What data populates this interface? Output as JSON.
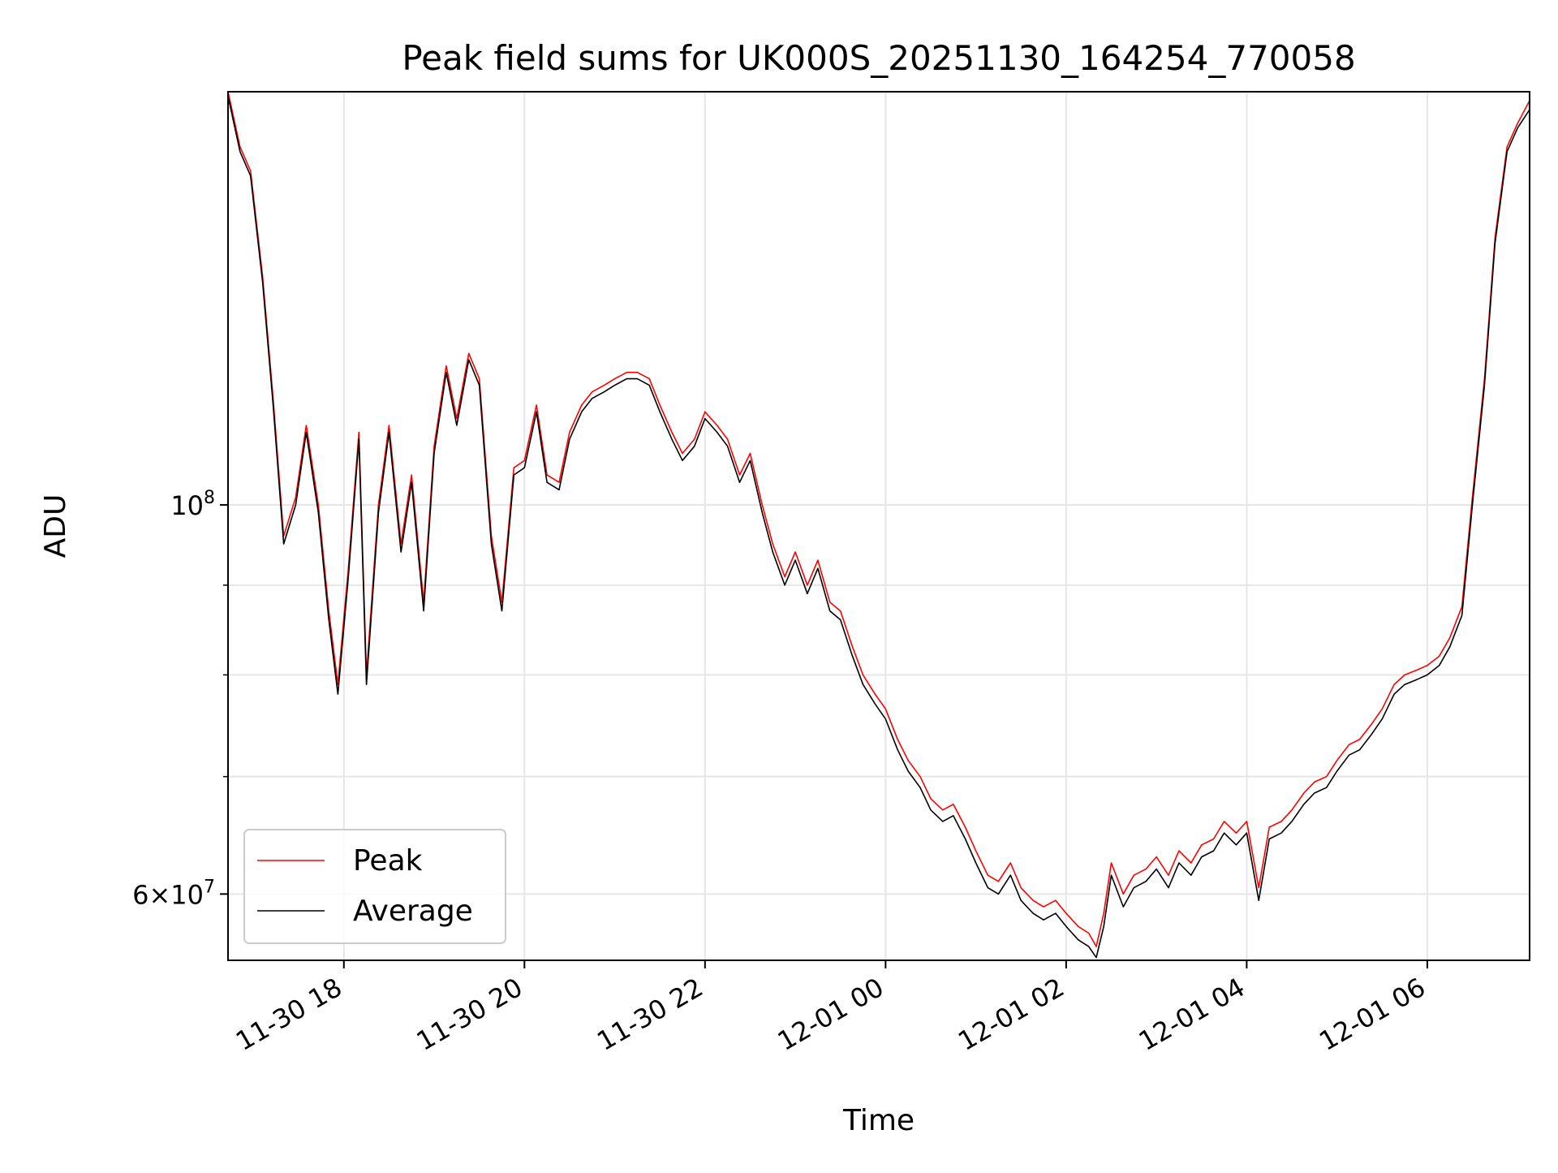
{
  "chart_data": {
    "type": "line",
    "title": "Peak field sums for UK000S_20251130_164254_770058",
    "xlabel": "Time",
    "ylabel": "ADU",
    "y_scale": "log",
    "ylim": [
      55000000,
      172000000
    ],
    "xlim": [
      "2025-11-30 16:43",
      "2025-12-01 07:08"
    ],
    "x_ticks": [
      {
        "time": "2025-11-30 18:00",
        "label": "11-30 18"
      },
      {
        "time": "2025-11-30 20:00",
        "label": "11-30 20"
      },
      {
        "time": "2025-11-30 22:00",
        "label": "11-30 22"
      },
      {
        "time": "2025-12-01 00:00",
        "label": "12-01 00"
      },
      {
        "time": "2025-12-01 02:00",
        "label": "12-01 02"
      },
      {
        "time": "2025-12-01 04:00",
        "label": "12-01 04"
      },
      {
        "time": "2025-12-01 06:00",
        "label": "12-01 06"
      }
    ],
    "y_major_ticks": [
      {
        "value": 100000000,
        "base": "10",
        "exp": "8"
      },
      {
        "value": 60000000,
        "base": "6×10",
        "exp": "7"
      }
    ],
    "y_minor_gridlines": [
      70000000,
      80000000,
      90000000
    ],
    "grid": true,
    "legend_position": "lower-left",
    "series": [
      {
        "name": "Peak",
        "color": "#ff0000",
        "points": [
          [
            "2025-11-30 16:43",
            172000000
          ],
          [
            "2025-11-30 16:51",
            160000000
          ],
          [
            "2025-11-30 16:58",
            155000000
          ],
          [
            "2025-11-30 17:06",
            135000000
          ],
          [
            "2025-11-30 17:13",
            115000000
          ],
          [
            "2025-11-30 17:20",
            96000000
          ],
          [
            "2025-11-30 17:28",
            101000000
          ],
          [
            "2025-11-30 17:35",
            111000000
          ],
          [
            "2025-11-30 17:43",
            100000000
          ],
          [
            "2025-11-30 17:50",
            87000000
          ],
          [
            "2025-11-30 17:56",
            79000000
          ],
          [
            "2025-11-30 18:03",
            92000000
          ],
          [
            "2025-11-30 18:10",
            110000000
          ],
          [
            "2025-11-30 18:15",
            80000000
          ],
          [
            "2025-11-30 18:23",
            100000000
          ],
          [
            "2025-11-30 18:30",
            111000000
          ],
          [
            "2025-11-30 18:38",
            95000000
          ],
          [
            "2025-11-30 18:45",
            104000000
          ],
          [
            "2025-11-30 18:53",
            88000000
          ],
          [
            "2025-11-30 19:00",
            108000000
          ],
          [
            "2025-11-30 19:08",
            120000000
          ],
          [
            "2025-11-30 19:15",
            112000000
          ],
          [
            "2025-11-30 19:23",
            122000000
          ],
          [
            "2025-11-30 19:30",
            118000000
          ],
          [
            "2025-11-30 19:38",
            96000000
          ],
          [
            "2025-11-30 19:45",
            88000000
          ],
          [
            "2025-11-30 19:53",
            105000000
          ],
          [
            "2025-11-30 20:00",
            106000000
          ],
          [
            "2025-11-30 20:08",
            114000000
          ],
          [
            "2025-11-30 20:15",
            104000000
          ],
          [
            "2025-11-30 20:23",
            103000000
          ],
          [
            "2025-11-30 20:30",
            110000000
          ],
          [
            "2025-11-30 20:38",
            114000000
          ],
          [
            "2025-11-30 20:45",
            116000000
          ],
          [
            "2025-11-30 20:53",
            117000000
          ],
          [
            "2025-11-30 21:00",
            118000000
          ],
          [
            "2025-11-30 21:08",
            119000000
          ],
          [
            "2025-11-30 21:15",
            119000000
          ],
          [
            "2025-11-30 21:23",
            118000000
          ],
          [
            "2025-11-30 21:30",
            114000000
          ],
          [
            "2025-11-30 21:38",
            110000000
          ],
          [
            "2025-11-30 21:45",
            107000000
          ],
          [
            "2025-11-30 21:53",
            109000000
          ],
          [
            "2025-11-30 22:00",
            113000000
          ],
          [
            "2025-11-30 22:08",
            111000000
          ],
          [
            "2025-11-30 22:15",
            109000000
          ],
          [
            "2025-11-30 22:23",
            104000000
          ],
          [
            "2025-11-30 22:30",
            107000000
          ],
          [
            "2025-11-30 22:38",
            100000000
          ],
          [
            "2025-11-30 22:45",
            95000000
          ],
          [
            "2025-11-30 22:53",
            91000000
          ],
          [
            "2025-11-30 23:00",
            94000000
          ],
          [
            "2025-11-30 23:08",
            90000000
          ],
          [
            "2025-11-30 23:15",
            93000000
          ],
          [
            "2025-11-30 23:23",
            88000000
          ],
          [
            "2025-11-30 23:30",
            87000000
          ],
          [
            "2025-11-30 23:38",
            83000000
          ],
          [
            "2025-11-30 23:45",
            80000000
          ],
          [
            "2025-11-30 23:53",
            78000000
          ],
          [
            "2025-12-01 00:00",
            76500000
          ],
          [
            "2025-12-01 00:08",
            73500000
          ],
          [
            "2025-12-01 00:15",
            71500000
          ],
          [
            "2025-12-01 00:23",
            70000000
          ],
          [
            "2025-12-01 00:30",
            68000000
          ],
          [
            "2025-12-01 00:38",
            67000000
          ],
          [
            "2025-12-01 00:45",
            67500000
          ],
          [
            "2025-12-01 00:53",
            65500000
          ],
          [
            "2025-12-01 01:00",
            63500000
          ],
          [
            "2025-12-01 01:08",
            61500000
          ],
          [
            "2025-12-01 01:15",
            61000000
          ],
          [
            "2025-12-01 01:23",
            62500000
          ],
          [
            "2025-12-01 01:30",
            60500000
          ],
          [
            "2025-12-01 01:38",
            59500000
          ],
          [
            "2025-12-01 01:45",
            59000000
          ],
          [
            "2025-12-01 01:53",
            59500000
          ],
          [
            "2025-12-01 02:00",
            58500000
          ],
          [
            "2025-12-01 02:08",
            57500000
          ],
          [
            "2025-12-01 02:15",
            57000000
          ],
          [
            "2025-12-01 02:20",
            56000000
          ],
          [
            "2025-12-01 02:25",
            58500000
          ],
          [
            "2025-12-01 02:30",
            62500000
          ],
          [
            "2025-12-01 02:38",
            60000000
          ],
          [
            "2025-12-01 02:45",
            61500000
          ],
          [
            "2025-12-01 02:53",
            62000000
          ],
          [
            "2025-12-01 03:00",
            63000000
          ],
          [
            "2025-12-01 03:08",
            61500000
          ],
          [
            "2025-12-01 03:15",
            63500000
          ],
          [
            "2025-12-01 03:23",
            62500000
          ],
          [
            "2025-12-01 03:30",
            64000000
          ],
          [
            "2025-12-01 03:38",
            64500000
          ],
          [
            "2025-12-01 03:45",
            66000000
          ],
          [
            "2025-12-01 03:53",
            65000000
          ],
          [
            "2025-12-01 04:00",
            66000000
          ],
          [
            "2025-12-01 04:08",
            60500000
          ],
          [
            "2025-12-01 04:15",
            65500000
          ],
          [
            "2025-12-01 04:23",
            66000000
          ],
          [
            "2025-12-01 04:30",
            67000000
          ],
          [
            "2025-12-01 04:38",
            68500000
          ],
          [
            "2025-12-01 04:45",
            69500000
          ],
          [
            "2025-12-01 04:53",
            70000000
          ],
          [
            "2025-12-01 05:00",
            71500000
          ],
          [
            "2025-12-01 05:08",
            73000000
          ],
          [
            "2025-12-01 05:15",
            73500000
          ],
          [
            "2025-12-01 05:23",
            75000000
          ],
          [
            "2025-12-01 05:30",
            76500000
          ],
          [
            "2025-12-01 05:38",
            79000000
          ],
          [
            "2025-12-01 05:45",
            80000000
          ],
          [
            "2025-12-01 05:53",
            80500000
          ],
          [
            "2025-12-01 06:00",
            81000000
          ],
          [
            "2025-12-01 06:08",
            82000000
          ],
          [
            "2025-12-01 06:15",
            84000000
          ],
          [
            "2025-12-01 06:23",
            87500000
          ],
          [
            "2025-12-01 06:30",
            101000000
          ],
          [
            "2025-12-01 06:38",
            118000000
          ],
          [
            "2025-12-01 06:45",
            142000000
          ],
          [
            "2025-12-01 06:53",
            160000000
          ],
          [
            "2025-12-01 07:00",
            165000000
          ],
          [
            "2025-12-01 07:08",
            170000000
          ]
        ]
      },
      {
        "name": "Average",
        "color": "#000000",
        "points": [
          [
            "2025-11-30 16:43",
            171000000
          ],
          [
            "2025-11-30 16:51",
            159000000
          ],
          [
            "2025-11-30 16:58",
            154000000
          ],
          [
            "2025-11-30 17:06",
            134000000
          ],
          [
            "2025-11-30 17:13",
            114000000
          ],
          [
            "2025-11-30 17:20",
            95000000
          ],
          [
            "2025-11-30 17:28",
            100000000
          ],
          [
            "2025-11-30 17:35",
            110000000
          ],
          [
            "2025-11-30 17:43",
            99000000
          ],
          [
            "2025-11-30 17:50",
            86000000
          ],
          [
            "2025-11-30 17:56",
            78000000
          ],
          [
            "2025-11-30 18:03",
            91000000
          ],
          [
            "2025-11-30 18:10",
            109000000
          ],
          [
            "2025-11-30 18:15",
            79000000
          ],
          [
            "2025-11-30 18:23",
            99000000
          ],
          [
            "2025-11-30 18:30",
            110000000
          ],
          [
            "2025-11-30 18:38",
            94000000
          ],
          [
            "2025-11-30 18:45",
            103000000
          ],
          [
            "2025-11-30 18:53",
            87000000
          ],
          [
            "2025-11-30 19:00",
            107000000
          ],
          [
            "2025-11-30 19:08",
            119000000
          ],
          [
            "2025-11-30 19:15",
            111000000
          ],
          [
            "2025-11-30 19:23",
            121000000
          ],
          [
            "2025-11-30 19:30",
            117000000
          ],
          [
            "2025-11-30 19:38",
            95000000
          ],
          [
            "2025-11-30 19:45",
            87000000
          ],
          [
            "2025-11-30 19:53",
            104000000
          ],
          [
            "2025-11-30 20:00",
            105000000
          ],
          [
            "2025-11-30 20:08",
            113000000
          ],
          [
            "2025-11-30 20:15",
            103000000
          ],
          [
            "2025-11-30 20:23",
            102000000
          ],
          [
            "2025-11-30 20:30",
            109000000
          ],
          [
            "2025-11-30 20:38",
            113000000
          ],
          [
            "2025-11-30 20:45",
            115000000
          ],
          [
            "2025-11-30 20:53",
            116000000
          ],
          [
            "2025-11-30 21:00",
            117000000
          ],
          [
            "2025-11-30 21:08",
            118000000
          ],
          [
            "2025-11-30 21:15",
            118000000
          ],
          [
            "2025-11-30 21:23",
            117000000
          ],
          [
            "2025-11-30 21:30",
            113000000
          ],
          [
            "2025-11-30 21:38",
            109000000
          ],
          [
            "2025-11-30 21:45",
            106000000
          ],
          [
            "2025-11-30 21:53",
            108000000
          ],
          [
            "2025-11-30 22:00",
            112000000
          ],
          [
            "2025-11-30 22:08",
            110000000
          ],
          [
            "2025-11-30 22:15",
            108000000
          ],
          [
            "2025-11-30 22:23",
            103000000
          ],
          [
            "2025-11-30 22:30",
            106000000
          ],
          [
            "2025-11-30 22:38",
            99000000
          ],
          [
            "2025-11-30 22:45",
            94000000
          ],
          [
            "2025-11-30 22:53",
            90000000
          ],
          [
            "2025-11-30 23:00",
            93000000
          ],
          [
            "2025-11-30 23:08",
            89000000
          ],
          [
            "2025-11-30 23:15",
            92000000
          ],
          [
            "2025-11-30 23:23",
            87000000
          ],
          [
            "2025-11-30 23:30",
            86000000
          ],
          [
            "2025-11-30 23:38",
            82000000
          ],
          [
            "2025-11-30 23:45",
            79000000
          ],
          [
            "2025-11-30 23:53",
            77000000
          ],
          [
            "2025-12-01 00:00",
            75500000
          ],
          [
            "2025-12-01 00:08",
            72500000
          ],
          [
            "2025-12-01 00:15",
            70500000
          ],
          [
            "2025-12-01 00:23",
            69000000
          ],
          [
            "2025-12-01 00:30",
            67000000
          ],
          [
            "2025-12-01 00:38",
            66000000
          ],
          [
            "2025-12-01 00:45",
            66500000
          ],
          [
            "2025-12-01 00:53",
            64500000
          ],
          [
            "2025-12-01 01:00",
            62500000
          ],
          [
            "2025-12-01 01:08",
            60500000
          ],
          [
            "2025-12-01 01:15",
            60000000
          ],
          [
            "2025-12-01 01:23",
            61500000
          ],
          [
            "2025-12-01 01:30",
            59500000
          ],
          [
            "2025-12-01 01:38",
            58500000
          ],
          [
            "2025-12-01 01:45",
            58000000
          ],
          [
            "2025-12-01 01:53",
            58500000
          ],
          [
            "2025-12-01 02:00",
            57500000
          ],
          [
            "2025-12-01 02:08",
            56500000
          ],
          [
            "2025-12-01 02:15",
            56000000
          ],
          [
            "2025-12-01 02:20",
            55200000
          ],
          [
            "2025-12-01 02:25",
            57500000
          ],
          [
            "2025-12-01 02:30",
            61500000
          ],
          [
            "2025-12-01 02:38",
            59000000
          ],
          [
            "2025-12-01 02:45",
            60500000
          ],
          [
            "2025-12-01 02:53",
            61000000
          ],
          [
            "2025-12-01 03:00",
            62000000
          ],
          [
            "2025-12-01 03:08",
            60500000
          ],
          [
            "2025-12-01 03:15",
            62500000
          ],
          [
            "2025-12-01 03:23",
            61500000
          ],
          [
            "2025-12-01 03:30",
            63000000
          ],
          [
            "2025-12-01 03:38",
            63500000
          ],
          [
            "2025-12-01 03:45",
            65000000
          ],
          [
            "2025-12-01 03:53",
            64000000
          ],
          [
            "2025-12-01 04:00",
            65000000
          ],
          [
            "2025-12-01 04:08",
            59500000
          ],
          [
            "2025-12-01 04:15",
            64500000
          ],
          [
            "2025-12-01 04:23",
            65000000
          ],
          [
            "2025-12-01 04:30",
            66000000
          ],
          [
            "2025-12-01 04:38",
            67500000
          ],
          [
            "2025-12-01 04:45",
            68500000
          ],
          [
            "2025-12-01 04:53",
            69000000
          ],
          [
            "2025-12-01 05:00",
            70500000
          ],
          [
            "2025-12-01 05:08",
            72000000
          ],
          [
            "2025-12-01 05:15",
            72500000
          ],
          [
            "2025-12-01 05:23",
            74000000
          ],
          [
            "2025-12-01 05:30",
            75500000
          ],
          [
            "2025-12-01 05:38",
            78000000
          ],
          [
            "2025-12-01 05:45",
            79000000
          ],
          [
            "2025-12-01 05:53",
            79500000
          ],
          [
            "2025-12-01 06:00",
            80000000
          ],
          [
            "2025-12-01 06:08",
            81000000
          ],
          [
            "2025-12-01 06:15",
            83000000
          ],
          [
            "2025-12-01 06:23",
            86500000
          ],
          [
            "2025-12-01 06:30",
            100000000
          ],
          [
            "2025-12-01 06:38",
            117000000
          ],
          [
            "2025-12-01 06:45",
            141000000
          ],
          [
            "2025-12-01 06:53",
            159000000
          ],
          [
            "2025-12-01 07:00",
            164000000
          ],
          [
            "2025-12-01 07:08",
            168000000
          ]
        ]
      }
    ]
  }
}
